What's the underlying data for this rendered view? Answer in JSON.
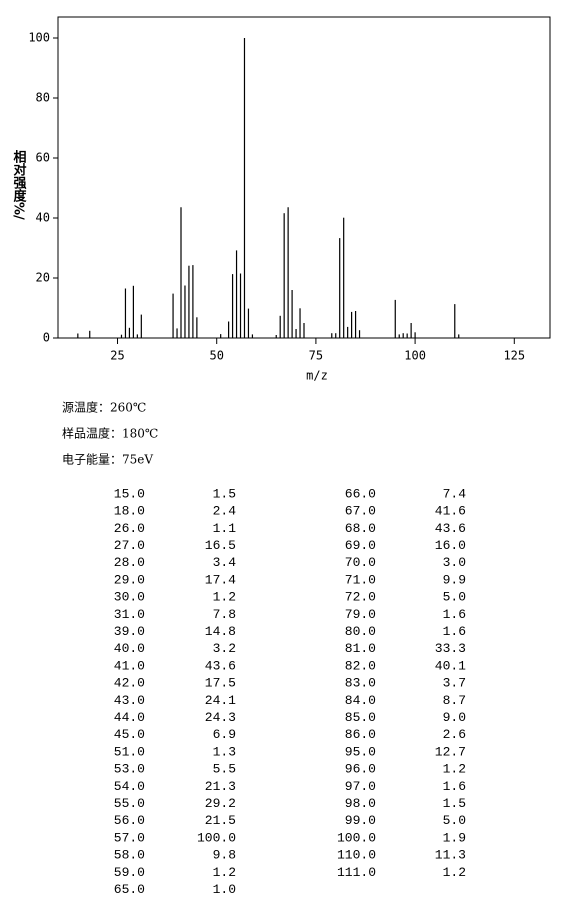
{
  "chart_data": {
    "type": "bar",
    "xlabel": "m/z",
    "ylabel": "相对强度%/",
    "x": [
      15,
      18,
      26,
      27,
      28,
      29,
      30,
      31,
      39,
      40,
      41,
      42,
      43,
      44,
      45,
      51,
      53,
      54,
      55,
      56,
      57,
      58,
      59,
      65,
      66,
      67,
      68,
      69,
      70,
      71,
      72,
      79,
      80,
      81,
      82,
      83,
      84,
      85,
      86,
      95,
      96,
      97,
      98,
      99,
      100,
      110,
      111
    ],
    "values": [
      1.5,
      2.4,
      1.1,
      16.5,
      3.4,
      17.4,
      1.2,
      7.8,
      14.8,
      3.2,
      43.6,
      17.5,
      24.1,
      24.3,
      6.9,
      1.3,
      5.5,
      21.3,
      29.2,
      21.5,
      100.0,
      9.8,
      1.2,
      1.0,
      7.4,
      41.6,
      43.6,
      16.0,
      3.0,
      9.9,
      5.0,
      1.6,
      1.6,
      33.3,
      40.1,
      3.7,
      8.7,
      9.0,
      2.6,
      12.7,
      1.2,
      1.6,
      1.5,
      5.0,
      1.9,
      11.3,
      1.2
    ],
    "color": "#000000",
    "xlim": [
      10,
      134
    ],
    "xticks": [
      25,
      50,
      75,
      100,
      125
    ],
    "ylim": [
      0,
      107
    ],
    "yticks": [
      0,
      20,
      40,
      60,
      80,
      100
    ]
  },
  "info": [
    "源温度：260℃",
    "样品温度：180℃",
    "电子能量：75eV"
  ],
  "table": {
    "rows": [
      [
        "15.0",
        "1.5"
      ],
      [
        "18.0",
        "2.4"
      ],
      [
        "26.0",
        "1.1"
      ],
      [
        "27.0",
        "16.5"
      ],
      [
        "28.0",
        "3.4"
      ],
      [
        "29.0",
        "17.4"
      ],
      [
        "30.0",
        "1.2"
      ],
      [
        "31.0",
        "7.8"
      ],
      [
        "39.0",
        "14.8"
      ],
      [
        "40.0",
        "3.2"
      ],
      [
        "41.0",
        "43.6"
      ],
      [
        "42.0",
        "17.5"
      ],
      [
        "43.0",
        "24.1"
      ],
      [
        "44.0",
        "24.3"
      ],
      [
        "45.0",
        "6.9"
      ],
      [
        "51.0",
        "1.3"
      ],
      [
        "53.0",
        "5.5"
      ],
      [
        "54.0",
        "21.3"
      ],
      [
        "55.0",
        "29.2"
      ],
      [
        "56.0",
        "21.5"
      ],
      [
        "57.0",
        "100.0"
      ],
      [
        "58.0",
        "9.8"
      ],
      [
        "59.0",
        "1.2"
      ],
      [
        "65.0",
        "1.0"
      ],
      [
        "66.0",
        "7.4"
      ],
      [
        "67.0",
        "41.6"
      ],
      [
        "68.0",
        "43.6"
      ],
      [
        "69.0",
        "16.0"
      ],
      [
        "70.0",
        "3.0"
      ],
      [
        "71.0",
        "9.9"
      ],
      [
        "72.0",
        "5.0"
      ],
      [
        "79.0",
        "1.6"
      ],
      [
        "80.0",
        "1.6"
      ],
      [
        "81.0",
        "33.3"
      ],
      [
        "82.0",
        "40.1"
      ],
      [
        "83.0",
        "3.7"
      ],
      [
        "84.0",
        "8.7"
      ],
      [
        "85.0",
        "9.0"
      ],
      [
        "86.0",
        "2.6"
      ],
      [
        "95.0",
        "12.7"
      ],
      [
        "96.0",
        "1.2"
      ],
      [
        "97.0",
        "1.6"
      ],
      [
        "98.0",
        "1.5"
      ],
      [
        "99.0",
        "5.0"
      ],
      [
        "100.0",
        "1.9"
      ],
      [
        "110.0",
        "11.3"
      ],
      [
        "111.0",
        "1.2"
      ]
    ]
  }
}
